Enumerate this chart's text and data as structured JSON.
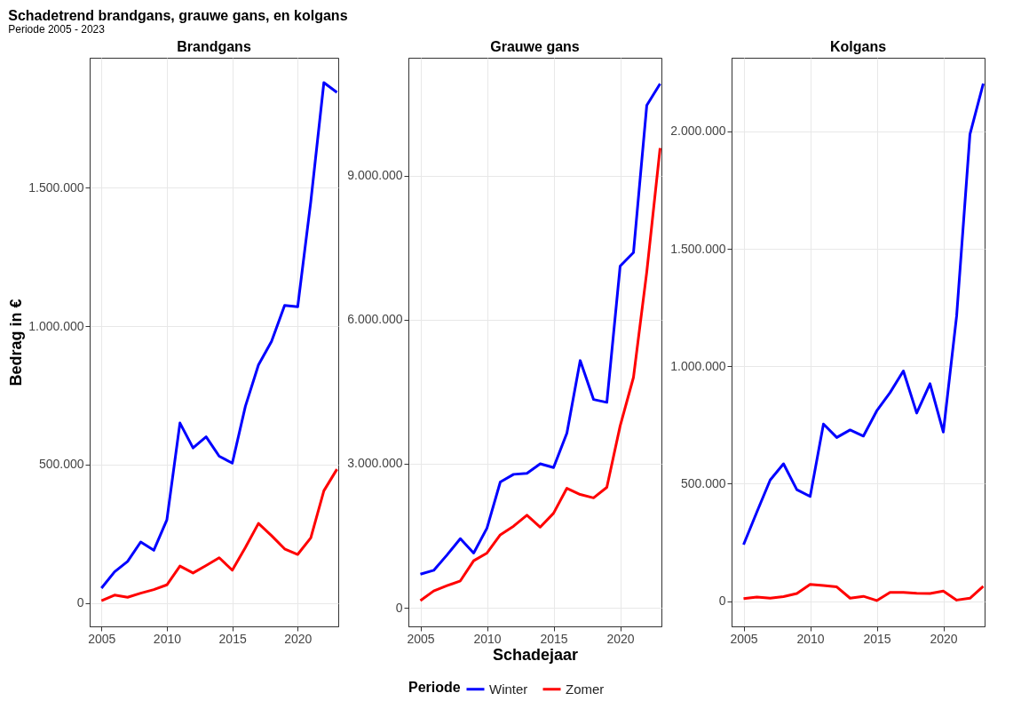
{
  "chart_data": [
    {
      "type": "line",
      "title": "Brandgans",
      "annotations": [
        "Schadetrend brandgans, grauwe gans, en kolgans",
        "Periode 2005 - 2023"
      ],
      "ylabel": "Bedrag in €",
      "x": [
        2005,
        2006,
        2007,
        2008,
        2009,
        2010,
        2011,
        2012,
        2013,
        2014,
        2015,
        2016,
        2017,
        2018,
        2019,
        2020,
        2021,
        2022,
        2023
      ],
      "xlim": [
        2004.1,
        2023.1
      ],
      "xticks": [
        2005,
        2010,
        2015,
        2020
      ],
      "ylim": [
        -85000,
        1970000
      ],
      "yticks": [
        {
          "value": 0,
          "label": "0"
        },
        {
          "value": 500000,
          "label": "500.000"
        },
        {
          "value": 1000000,
          "label": "1.000.000"
        },
        {
          "value": 1500000,
          "label": "1.500.000"
        }
      ],
      "grid": true,
      "series": [
        {
          "color": "#0000ff",
          "values": [
            53000,
            112000,
            150000,
            220000,
            190000,
            300000,
            650000,
            560000,
            600000,
            530000,
            505000,
            710000,
            860000,
            945000,
            1075000,
            1070000,
            1450000,
            1880000,
            1845000
          ]
        },
        {
          "color": "#ff0000",
          "values": [
            8000,
            28000,
            20000,
            35000,
            48000,
            65000,
            133000,
            108000,
            135000,
            163000,
            118000,
            200000,
            287000,
            243000,
            195000,
            175000,
            235000,
            405000,
            483000
          ]
        }
      ]
    },
    {
      "type": "line",
      "title": "Grauwe gans",
      "xlabel": "Schadejaar",
      "legend_title": "Periode",
      "legend": "bottom",
      "x": [
        2005,
        2006,
        2007,
        2008,
        2009,
        2010,
        2011,
        2012,
        2013,
        2014,
        2015,
        2016,
        2017,
        2018,
        2019,
        2020,
        2021,
        2022,
        2023
      ],
      "xlim": [
        2004.1,
        2023.1
      ],
      "xticks": [
        2005,
        2010,
        2015,
        2020
      ],
      "ylim": [
        -388000,
        11460000
      ],
      "yticks": [
        {
          "value": 0,
          "label": "0"
        },
        {
          "value": 3000000,
          "label": "3.000.000"
        },
        {
          "value": 6000000,
          "label": "6.000.000"
        },
        {
          "value": 9000000,
          "label": "9.000.000"
        }
      ],
      "grid": true,
      "series": [
        {
          "name": "Winter",
          "color": "#0000ff",
          "values": [
            700000,
            780000,
            1100000,
            1440000,
            1140000,
            1660000,
            2620000,
            2780000,
            2800000,
            3000000,
            2920000,
            3640000,
            5150000,
            4340000,
            4280000,
            7120000,
            7400000,
            10470000,
            10920000
          ]
        },
        {
          "name": "Zomer",
          "color": "#ff0000",
          "values": [
            150000,
            350000,
            460000,
            560000,
            980000,
            1140000,
            1520000,
            1700000,
            1930000,
            1680000,
            1970000,
            2490000,
            2360000,
            2290000,
            2510000,
            3790000,
            4800000,
            7000000,
            9580000
          ]
        }
      ]
    },
    {
      "type": "line",
      "title": "Kolgans",
      "x": [
        2005,
        2006,
        2007,
        2008,
        2009,
        2010,
        2011,
        2012,
        2013,
        2014,
        2015,
        2016,
        2017,
        2018,
        2019,
        2020,
        2021,
        2022,
        2023
      ],
      "xlim": [
        2004.1,
        2023.1
      ],
      "xticks": [
        2005,
        2010,
        2015,
        2020
      ],
      "ylim": [
        -107000,
        2313000
      ],
      "yticks": [
        {
          "value": 0,
          "label": "0"
        },
        {
          "value": 500000,
          "label": "500.000"
        },
        {
          "value": 1000000,
          "label": "1.000.000"
        },
        {
          "value": 1500000,
          "label": "1.500.000"
        },
        {
          "value": 2000000,
          "label": "2.000.000"
        }
      ],
      "grid": true,
      "series": [
        {
          "color": "#0000ff",
          "values": [
            241000,
            380000,
            516000,
            585000,
            475000,
            446000,
            754000,
            697000,
            729000,
            703000,
            810000,
            888000,
            980000,
            801000,
            926000,
            720000,
            1215000,
            1987000,
            2203000
          ]
        },
        {
          "color": "#ff0000",
          "values": [
            11000,
            18000,
            13000,
            20000,
            33000,
            72000,
            67000,
            61000,
            13000,
            21000,
            3000,
            38000,
            38000,
            34000,
            33000,
            43000,
            5000,
            13000,
            64000
          ]
        }
      ]
    }
  ]
}
